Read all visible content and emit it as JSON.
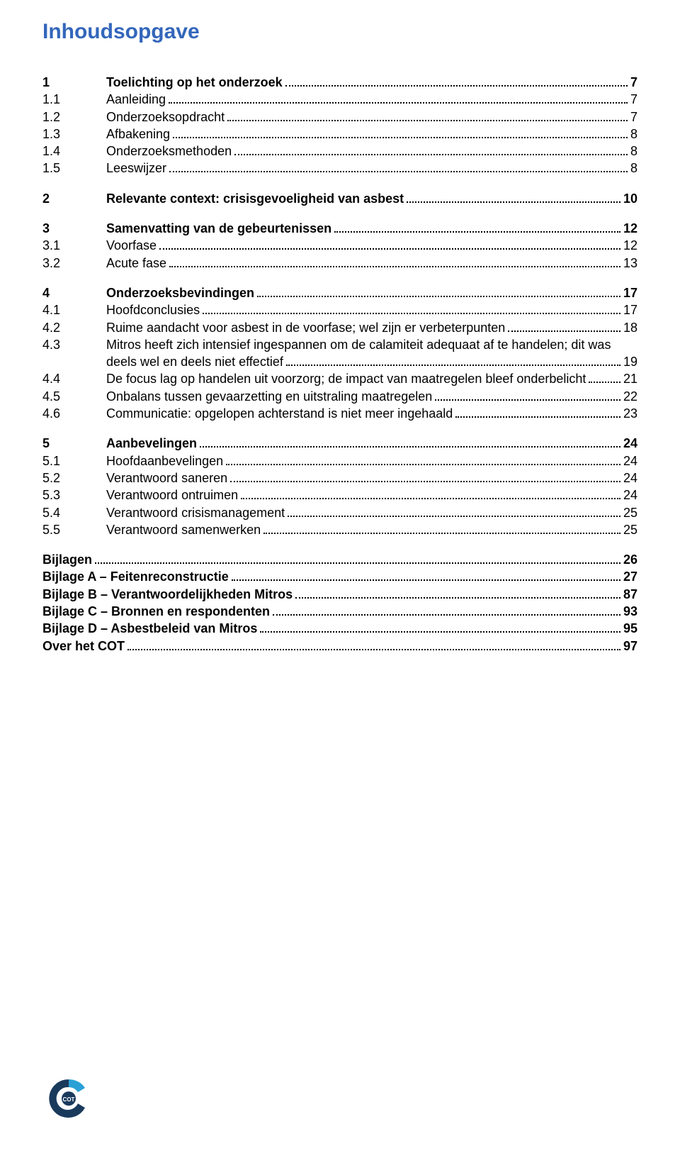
{
  "title": "Inhoudsopgave",
  "colors": {
    "title": "#3366bb",
    "text": "#000000",
    "background": "#ffffff",
    "logo_dark": "#1a3a5c",
    "logo_accent": "#2aa0d6",
    "logo_text": "#4a4a4a"
  },
  "toc": [
    {
      "type": "gap"
    },
    {
      "num": "1",
      "label": "Toelichting op het onderzoek",
      "page": "7",
      "bold": true
    },
    {
      "num": "1.1",
      "label": "Aanleiding",
      "page": "7"
    },
    {
      "num": "1.2",
      "label": "Onderzoeksopdracht",
      "page": "7"
    },
    {
      "num": "1.3",
      "label": "Afbakening",
      "page": "8"
    },
    {
      "num": "1.4",
      "label": "Onderzoeksmethoden",
      "page": "8"
    },
    {
      "num": "1.5",
      "label": "Leeswijzer",
      "page": "8"
    },
    {
      "type": "gap"
    },
    {
      "num": "2",
      "label": "Relevante context: crisisgevoeligheid van asbest",
      "page": "10",
      "bold": true
    },
    {
      "type": "gap"
    },
    {
      "num": "3",
      "label": "Samenvatting van de gebeurtenissen",
      "page": "12",
      "bold": true
    },
    {
      "num": "3.1",
      "label": "Voorfase",
      "page": "12"
    },
    {
      "num": "3.2",
      "label": "Acute fase",
      "page": "13"
    },
    {
      "type": "gap"
    },
    {
      "num": "4",
      "label": "Onderzoeksbevindingen",
      "page": "17",
      "bold": true
    },
    {
      "num": "4.1",
      "label": "Hoofdconclusies",
      "page": "17"
    },
    {
      "num": "4.2",
      "label": "Ruime aandacht voor asbest in de voorfase; wel zijn er verbeterpunten",
      "page": "18"
    },
    {
      "num": "4.3",
      "label": "Mitros heeft zich intensief ingespannen om de calamiteit adequaat af te handelen; dit was",
      "wrap_label": "deels wel en deels niet effectief",
      "page": "19"
    },
    {
      "num": "4.4",
      "label": "De focus lag op handelen uit voorzorg; de impact van maatregelen bleef onderbelicht",
      "page": "21"
    },
    {
      "num": "4.5",
      "label": "Onbalans tussen gevaarzetting en uitstraling maatregelen",
      "page": "22"
    },
    {
      "num": "4.6",
      "label": "Communicatie: opgelopen achterstand is niet meer ingehaald",
      "page": "23"
    },
    {
      "type": "gap"
    },
    {
      "num": "5",
      "label": "Aanbevelingen",
      "page": "24",
      "bold": true
    },
    {
      "num": "5.1",
      "label": "Hoofdaanbevelingen",
      "page": "24"
    },
    {
      "num": "5.2",
      "label": "Verantwoord saneren",
      "page": "24"
    },
    {
      "num": "5.3",
      "label": "Verantwoord ontruimen",
      "page": "24"
    },
    {
      "num": "5.4",
      "label": "Verantwoord crisismanagement",
      "page": "25"
    },
    {
      "num": "5.5",
      "label": "Verantwoord samenwerken",
      "page": "25"
    },
    {
      "type": "gap"
    },
    {
      "num": "",
      "label": "Bijlagen ",
      "page": "26",
      "bold": true,
      "back": true
    },
    {
      "num": "",
      "label": "Bijlage A – Feitenreconstructie",
      "page": "27",
      "bold": true,
      "back": true
    },
    {
      "num": "",
      "label": "Bijlage B – Verantwoordelijkheden Mitros",
      "page": "87",
      "bold": true,
      "back": true
    },
    {
      "num": "",
      "label": "Bijlage C – Bronnen en respondenten",
      "page": "93",
      "bold": true,
      "back": true
    },
    {
      "num": "",
      "label": "Bijlage D – Asbestbeleid van Mitros",
      "page": "95",
      "bold": true,
      "back": true
    },
    {
      "num": "",
      "label": "Over het COT",
      "page": "97",
      "bold": true,
      "back": true
    }
  ],
  "logo_text": "COT"
}
